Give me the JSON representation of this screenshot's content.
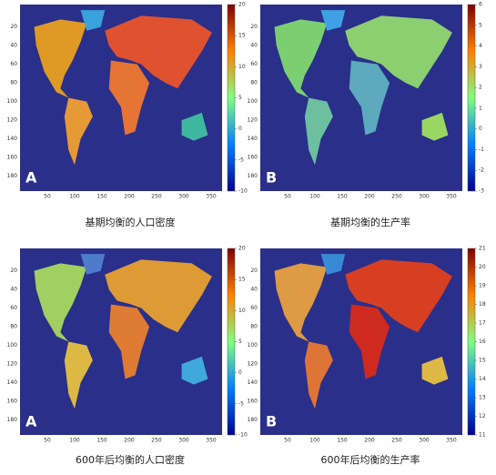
{
  "panels": [
    {
      "label": "A",
      "caption": "基期均衡的人口密度",
      "xticks": [
        50,
        100,
        150,
        200,
        250,
        300,
        350
      ],
      "yticks": [
        20,
        40,
        60,
        80,
        100,
        120,
        140,
        160,
        180
      ],
      "colorbar_ticks": [
        20,
        15,
        10,
        5,
        0,
        -5,
        -10
      ]
    },
    {
      "label": "B",
      "caption": "基期均衡的生产率",
      "xticks": [
        50,
        100,
        150,
        200,
        250,
        300,
        350
      ],
      "yticks": [
        20,
        40,
        60,
        80,
        100,
        120,
        140,
        160,
        180
      ],
      "colorbar_ticks": [
        6,
        5,
        4,
        3,
        2,
        1,
        0,
        -1,
        -2,
        -3
      ]
    },
    {
      "label": "A",
      "caption": "600年后均衡的人口密度",
      "xticks": [
        50,
        100,
        150,
        200,
        250,
        300,
        350
      ],
      "yticks": [
        20,
        40,
        60,
        80,
        100,
        120,
        140,
        160,
        180
      ],
      "colorbar_ticks": [
        20,
        15,
        10,
        5,
        0,
        -5,
        -10
      ]
    },
    {
      "label": "B",
      "caption": "600年后均衡的生产率",
      "xticks": [
        50,
        100,
        150,
        200,
        250,
        300,
        350
      ],
      "yticks": [
        20,
        40,
        60,
        80,
        100,
        120,
        140,
        160,
        180
      ],
      "colorbar_ticks": [
        21,
        20,
        19,
        18,
        17,
        16,
        15,
        14,
        13,
        12,
        11
      ]
    }
  ]
}
